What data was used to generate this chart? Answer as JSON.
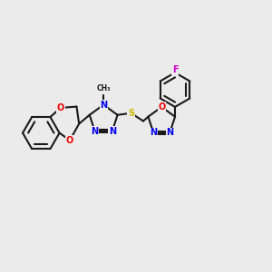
{
  "background_color": "#ebebeb",
  "bond_color": "#1a1a1a",
  "bond_width": 1.5,
  "dbo": 0.022,
  "atom_colors": {
    "N": "#0000ee",
    "O": "#ee0000",
    "S": "#ccbb00",
    "F": "#cc00cc",
    "C": "#1a1a1a"
  },
  "xlim": [
    -1.55,
    2.85
  ],
  "ylim": [
    0.1,
    2.9
  ],
  "figsize": [
    3.0,
    3.0
  ],
  "dpi": 100
}
